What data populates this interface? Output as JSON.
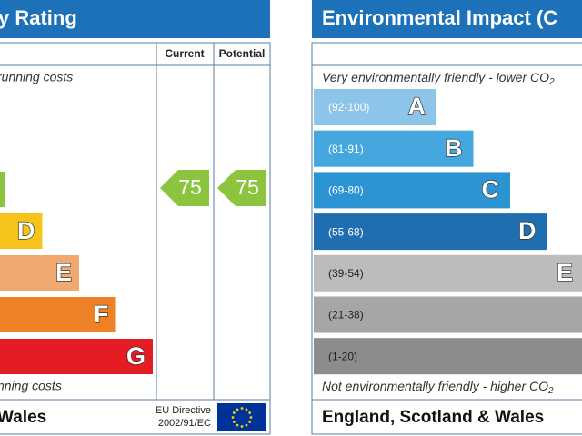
{
  "left": {
    "title": "y Rating",
    "col_current": "Current",
    "col_potential": "Potential",
    "top_text": "running costs",
    "bands": [
      {
        "color": "#8cc43f"
      },
      {
        "letter": "D",
        "color": "#f6c31b"
      },
      {
        "letter": "E",
        "color": "#f2a96f"
      },
      {
        "letter": "F",
        "color": "#ee8126"
      },
      {
        "letter": "G",
        "color": "#e31d23"
      }
    ],
    "current": 75,
    "potential": 75,
    "arrow_color": "#8cc43f",
    "bottom_text": "nning costs",
    "footer": "Wales",
    "directive_line1": "EU Directive",
    "directive_line2": "2002/91/EC"
  },
  "right": {
    "title": "Environmental Impact (C",
    "top_text": "Very environmentally friendly - lower CO",
    "top_sub": "2",
    "bands": [
      {
        "range": "(92-100)",
        "letter": "A",
        "color": "#8dc5ea"
      },
      {
        "range": "(81-91)",
        "letter": "B",
        "color": "#44a8de"
      },
      {
        "range": "(69-80)",
        "letter": "C",
        "color": "#2d94d3"
      },
      {
        "range": "(55-68)",
        "letter": "D",
        "color": "#1f6fb0"
      },
      {
        "range": "(39-54)",
        "letter": "E",
        "color": "#bcbcbc"
      },
      {
        "range": "(21-38)",
        "color": "#a6a6a6"
      },
      {
        "range": "(1-20)",
        "color": "#8c8c8c"
      }
    ],
    "bottom_text": "Not environmentally friendly - higher CO",
    "bottom_sub": "2",
    "footer": "England, Scotland & Wales"
  }
}
